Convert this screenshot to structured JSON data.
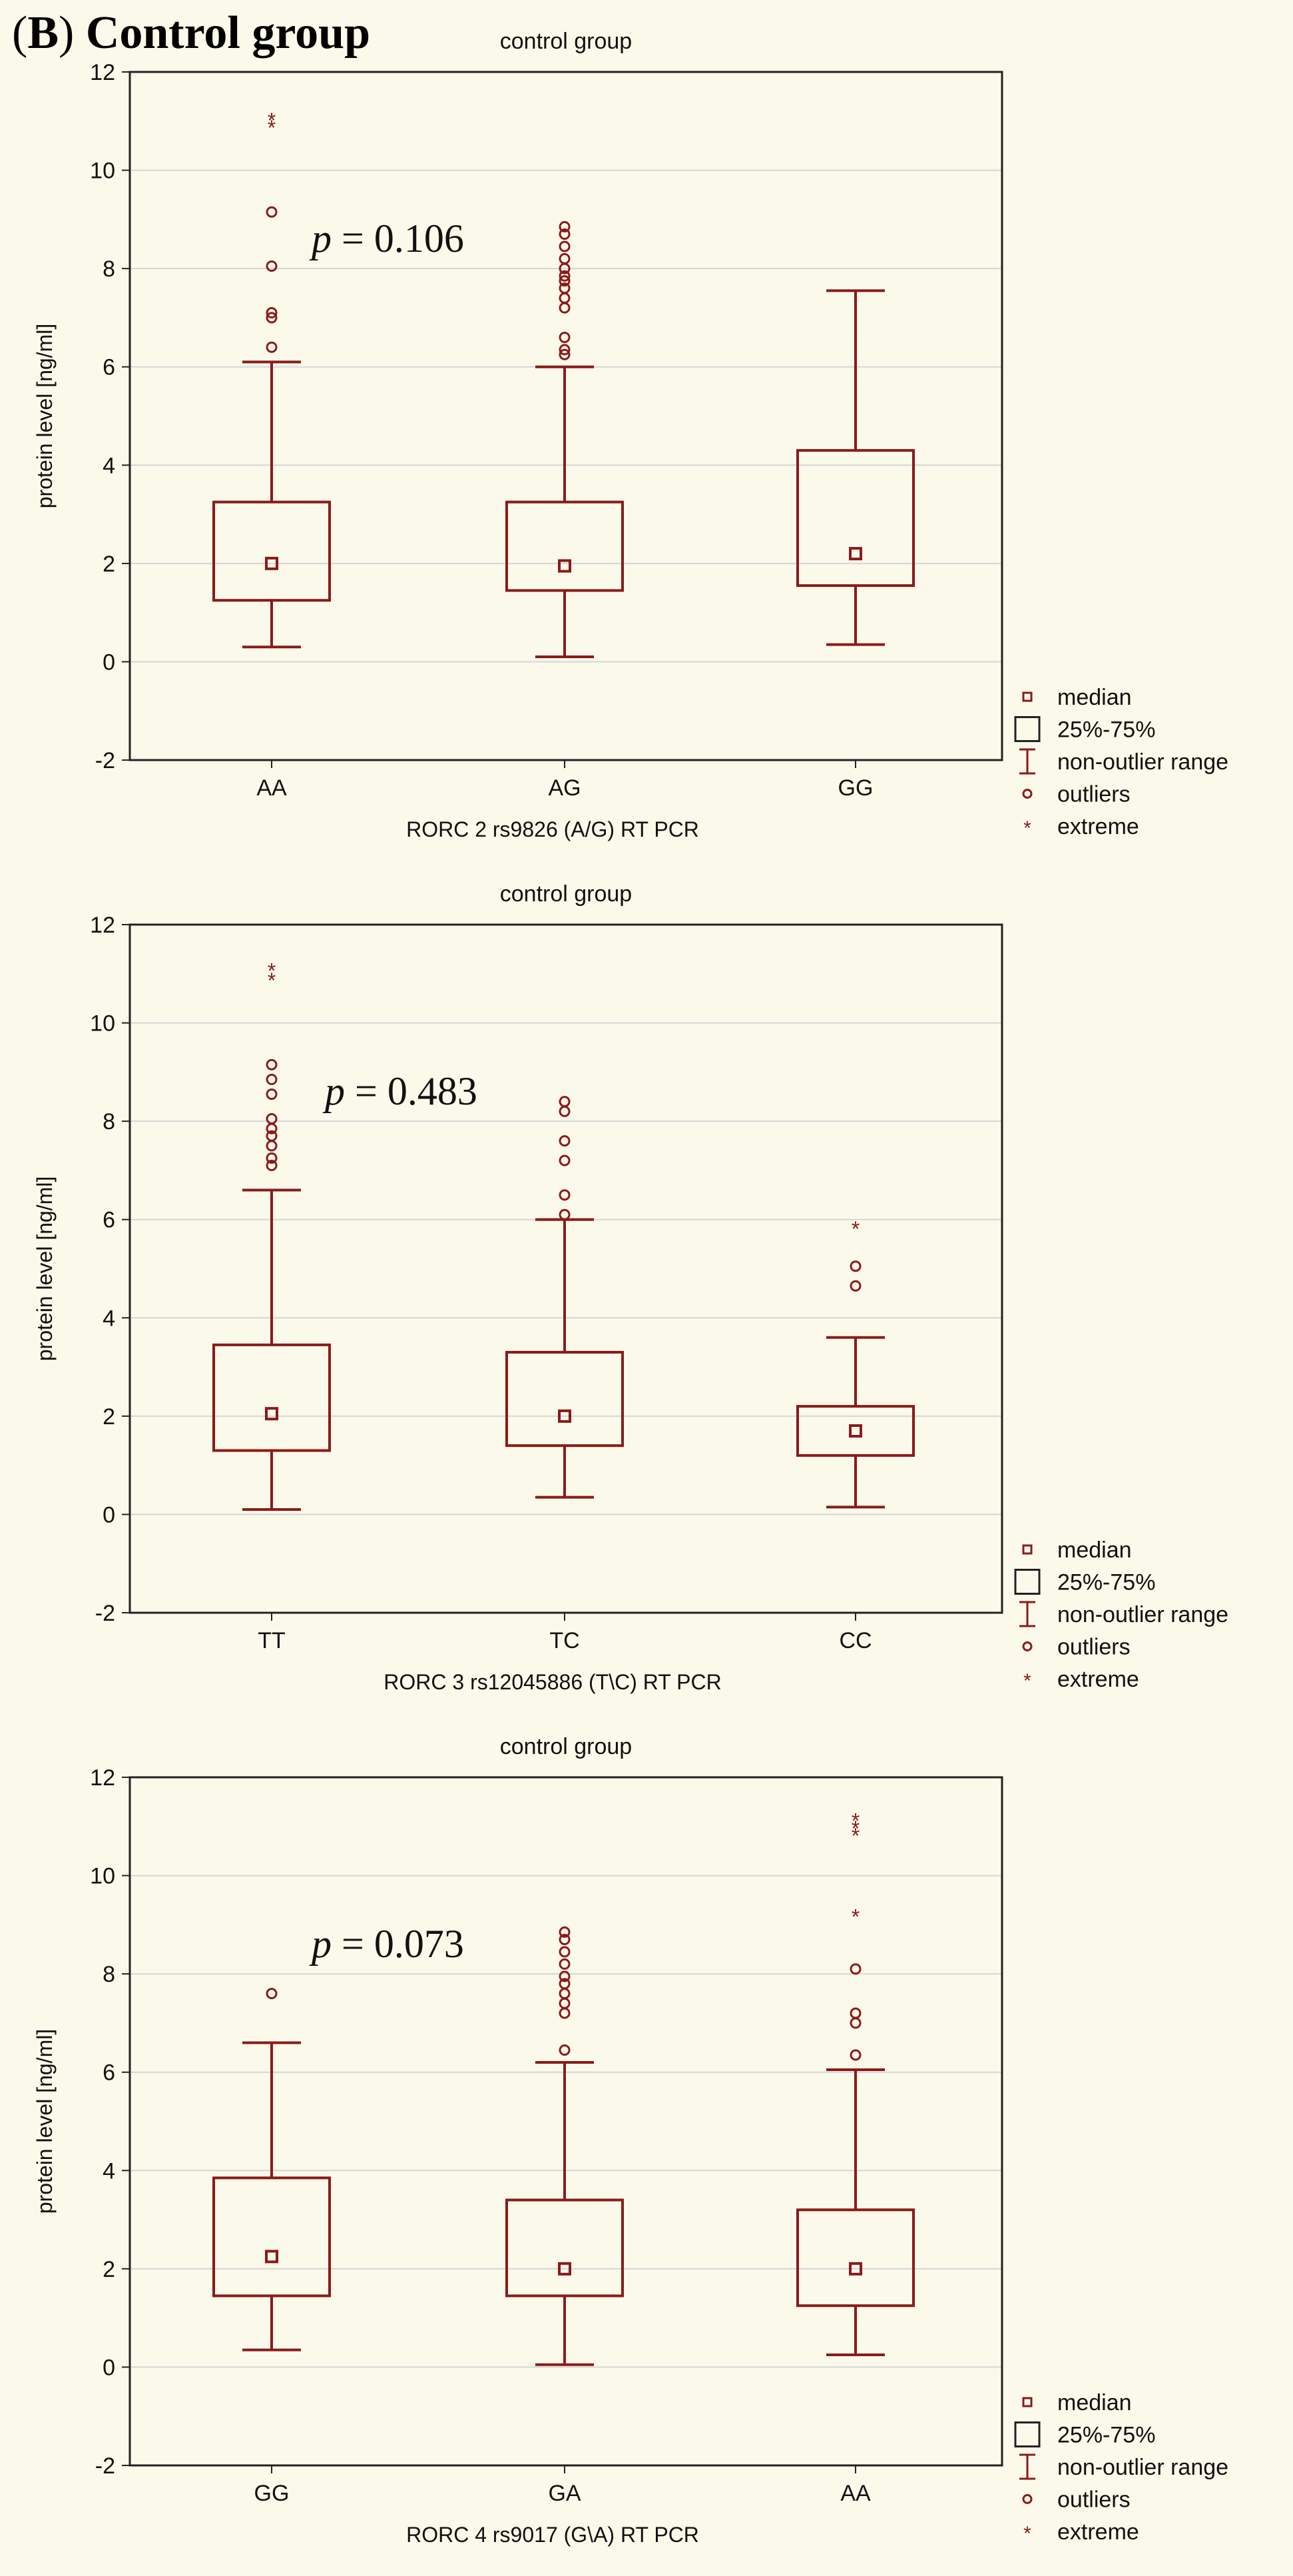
{
  "figure": {
    "label_letter": "B",
    "label_text": "Control group"
  },
  "chart_data": [
    {
      "type": "box",
      "title": "control group",
      "xlabel": "RORC 2 rs9826 (A/G) RT PCR",
      "ylabel": "protein level [ng/ml]",
      "ylim": [
        -2,
        12
      ],
      "yticks": [
        -2,
        0,
        2,
        4,
        6,
        8,
        10,
        12
      ],
      "grid": true,
      "categories": [
        "AA",
        "AG",
        "GG"
      ],
      "boxes": [
        {
          "category": "AA",
          "median": 2.0,
          "q1": 1.25,
          "q3": 3.25,
          "whisker_low": 0.3,
          "whisker_high": 6.1,
          "outliers": [
            6.4,
            7.0,
            7.1,
            8.05,
            9.15
          ],
          "extremes": [
            10.9,
            11.05
          ]
        },
        {
          "category": "AG",
          "median": 1.95,
          "q1": 1.45,
          "q3": 3.25,
          "whisker_low": 0.1,
          "whisker_high": 6.0,
          "outliers": [
            6.25,
            6.35,
            6.6,
            7.2,
            7.4,
            7.6,
            7.75,
            7.85,
            8.0,
            8.2,
            8.45,
            8.7,
            8.85
          ],
          "extremes": []
        },
        {
          "category": "GG",
          "median": 2.2,
          "q1": 1.55,
          "q3": 4.3,
          "whisker_low": 0.35,
          "whisker_high": 7.55,
          "outliers": [],
          "extremes": []
        }
      ],
      "annotation": {
        "label": "p",
        "text": " = 0.106"
      },
      "legend": {
        "position": "bottom-right-outside",
        "entries": [
          "median",
          "25%-75%",
          "non-outlier range",
          "outliers",
          "extreme"
        ]
      }
    },
    {
      "type": "box",
      "title": "control group",
      "xlabel": "RORC 3 rs12045886 (T\\C) RT PCR",
      "ylabel": "protein level [ng/ml]",
      "ylim": [
        -2,
        12
      ],
      "yticks": [
        -2,
        0,
        2,
        4,
        6,
        8,
        10,
        12
      ],
      "grid": true,
      "categories": [
        "TT",
        "TC",
        "CC"
      ],
      "boxes": [
        {
          "category": "TT",
          "median": 2.05,
          "q1": 1.3,
          "q3": 3.45,
          "whisker_low": 0.1,
          "whisker_high": 6.6,
          "outliers": [
            7.1,
            7.25,
            7.5,
            7.7,
            7.85,
            8.05,
            8.55,
            8.85,
            9.15
          ],
          "extremes": [
            10.9,
            11.1
          ]
        },
        {
          "category": "TC",
          "median": 2.0,
          "q1": 1.4,
          "q3": 3.3,
          "whisker_low": 0.35,
          "whisker_high": 6.0,
          "outliers": [
            6.1,
            6.5,
            7.2,
            7.6,
            8.2,
            8.4
          ],
          "extremes": []
        },
        {
          "category": "CC",
          "median": 1.7,
          "q1": 1.2,
          "q3": 2.2,
          "whisker_low": 0.15,
          "whisker_high": 3.6,
          "outliers": [
            4.65,
            5.05
          ],
          "extremes": [
            5.85
          ]
        }
      ],
      "annotation": {
        "label": "p",
        "text": " = 0.483"
      },
      "legend": {
        "position": "bottom-right-outside",
        "entries": [
          "median",
          "25%-75%",
          "non-outlier range",
          "outliers",
          "extreme"
        ]
      }
    },
    {
      "type": "box",
      "title": "control group",
      "xlabel": "RORC 4 rs9017 (G\\A) RT PCR",
      "ylabel": "protein level [ng/ml]",
      "ylim": [
        -2,
        12
      ],
      "yticks": [
        -2,
        0,
        2,
        4,
        6,
        8,
        10,
        12
      ],
      "grid": true,
      "categories": [
        "GG",
        "GA",
        "AA"
      ],
      "boxes": [
        {
          "category": "GG",
          "median": 2.25,
          "q1": 1.45,
          "q3": 3.85,
          "whisker_low": 0.35,
          "whisker_high": 6.6,
          "outliers": [
            7.6
          ],
          "extremes": []
        },
        {
          "category": "GA",
          "median": 2.0,
          "q1": 1.45,
          "q3": 3.4,
          "whisker_low": 0.05,
          "whisker_high": 6.2,
          "outliers": [
            6.45,
            7.2,
            7.4,
            7.6,
            7.8,
            7.95,
            8.2,
            8.45,
            8.7,
            8.85
          ],
          "extremes": []
        },
        {
          "category": "AA",
          "median": 2.0,
          "q1": 1.25,
          "q3": 3.2,
          "whisker_low": 0.25,
          "whisker_high": 6.05,
          "outliers": [
            6.35,
            7.0,
            7.2,
            8.1
          ],
          "extremes": [
            9.2,
            10.85,
            11.0,
            11.15
          ]
        }
      ],
      "annotation": {
        "label": "p",
        "text": " = 0.073"
      },
      "legend": {
        "position": "bottom-right-outside",
        "entries": [
          "median",
          "25%-75%",
          "non-outlier range",
          "outliers",
          "extreme"
        ]
      }
    }
  ],
  "colors": {
    "mark": "#8b1a1a",
    "grid": "#d6d6d6",
    "frame": "#222222",
    "background": "#fbf9ea"
  }
}
